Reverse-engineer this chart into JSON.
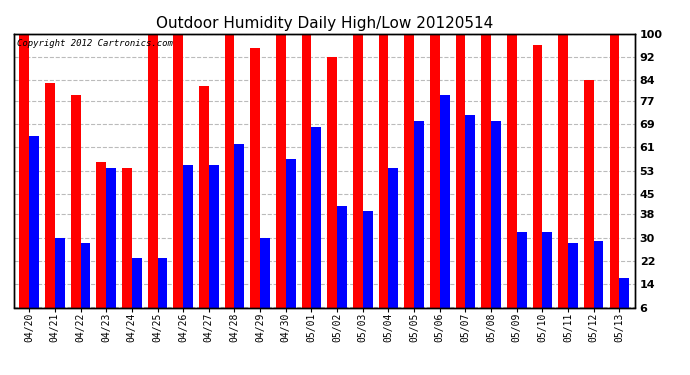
{
  "title": "Outdoor Humidity Daily High/Low 20120514",
  "copyright": "Copyright 2012 Cartronics.com",
  "dates": [
    "04/20",
    "04/21",
    "04/22",
    "04/23",
    "04/24",
    "04/25",
    "04/26",
    "04/27",
    "04/28",
    "04/29",
    "04/30",
    "05/01",
    "05/02",
    "05/03",
    "05/04",
    "05/05",
    "05/06",
    "05/07",
    "05/08",
    "05/09",
    "05/10",
    "05/11",
    "05/12",
    "05/13"
  ],
  "highs": [
    100,
    83,
    79,
    56,
    54,
    100,
    100,
    82,
    100,
    95,
    100,
    100,
    92,
    100,
    100,
    100,
    100,
    100,
    100,
    100,
    96,
    100,
    84,
    100
  ],
  "lows": [
    65,
    30,
    28,
    54,
    23,
    23,
    55,
    55,
    62,
    30,
    57,
    68,
    41,
    39,
    54,
    70,
    79,
    72,
    70,
    32,
    32,
    28,
    29,
    16
  ],
  "high_color": "#ff0000",
  "low_color": "#0000ff",
  "bg_color": "#ffffff",
  "grid_color": "#bbbbbb",
  "ylim_min": 6,
  "ylim_max": 100,
  "yticks": [
    6,
    14,
    22,
    30,
    38,
    45,
    53,
    61,
    69,
    77,
    84,
    92,
    100
  ],
  "bar_width": 0.38,
  "title_fontsize": 11
}
